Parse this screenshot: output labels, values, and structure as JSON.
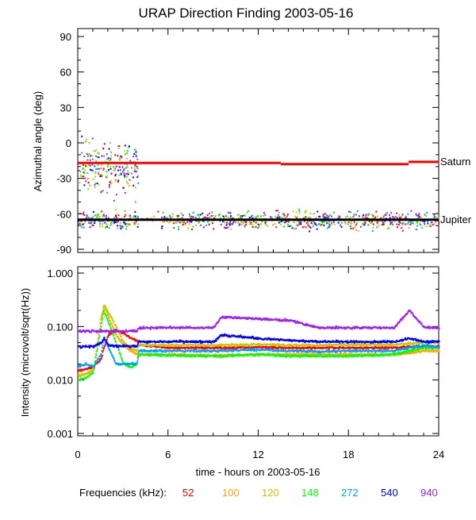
{
  "chart_data": [
    {
      "type": "scatter",
      "title": "URAP Direction Finding  2003-05-16",
      "ylabel": "Azimuthal angle (deg)",
      "xlim": [
        0,
        24
      ],
      "ylim": [
        -90,
        90
      ],
      "x_ticks": [
        "0",
        "6",
        "12",
        "18",
        "24"
      ],
      "y_ticks": [
        "90",
        "60",
        "30",
        "0",
        "-30",
        "-60",
        "-90"
      ],
      "reference_lines": [
        {
          "label": "Saturn",
          "color": "#ff0000",
          "segments": [
            [
              0,
              13.5,
              -17
            ],
            [
              13.5,
              22,
              -18
            ],
            [
              22,
              24,
              -16
            ]
          ]
        },
        {
          "label": "Jupiter",
          "color": "#000000",
          "segments": [
            [
              0,
              24,
              -65
            ]
          ]
        }
      ],
      "scatter_clusters": [
        {
          "x": [
            0,
            24
          ],
          "center": -65,
          "spread": 8,
          "note": "all frequencies"
        },
        {
          "x": [
            0,
            4
          ],
          "center": -20,
          "spread": 20,
          "note": "all frequencies"
        }
      ]
    },
    {
      "type": "line",
      "ylabel": "Intensity (microvolt/sqrt(Hz))",
      "xlabel": "time - hours on 2003-05-16",
      "xlim": [
        0,
        24
      ],
      "ylim": [
        0.001,
        1.0
      ],
      "yscale": "log",
      "x_ticks": [
        "0",
        "6",
        "12",
        "18",
        "24"
      ],
      "y_ticks": [
        "1.000",
        "0.100",
        "0.010",
        "0.001"
      ],
      "x": [
        0,
        0.5,
        1,
        1.5,
        1.7,
        2,
        2.5,
        3,
        3.5,
        3.9,
        4,
        6,
        9,
        9.5,
        12,
        14,
        16,
        18,
        21,
        22,
        23,
        24
      ],
      "series": [
        {
          "name": "52",
          "color": "#ff0000",
          "values": [
            0.015,
            0.016,
            0.018,
            0.025,
            0.04,
            0.07,
            0.085,
            0.075,
            0.06,
            0.055,
            0.045,
            0.04,
            0.04,
            0.04,
            0.041,
            0.04,
            0.04,
            0.04,
            0.04,
            0.042,
            0.042,
            0.042
          ]
        },
        {
          "name": "100",
          "color": "#ffa500",
          "values": [
            0.012,
            0.013,
            0.015,
            0.15,
            0.25,
            0.15,
            0.07,
            0.045,
            0.035,
            0.03,
            0.03,
            0.03,
            0.029,
            0.029,
            0.03,
            0.03,
            0.03,
            0.03,
            0.03,
            0.032,
            0.035,
            0.035
          ]
        },
        {
          "name": "120",
          "color": "#c8c800",
          "values": [
            0.012,
            0.013,
            0.016,
            0.12,
            0.25,
            0.18,
            0.1,
            0.05,
            0.04,
            0.035,
            0.045,
            0.045,
            0.045,
            0.045,
            0.046,
            0.045,
            0.045,
            0.046,
            0.046,
            0.048,
            0.05,
            0.05
          ]
        },
        {
          "name": "148",
          "color": "#00ff00",
          "values": [
            0.01,
            0.011,
            0.014,
            0.1,
            0.2,
            0.12,
            0.05,
            0.02,
            0.017,
            0.02,
            0.03,
            0.029,
            0.028,
            0.028,
            0.03,
            0.028,
            0.028,
            0.028,
            0.03,
            0.035,
            0.04,
            0.04
          ]
        },
        {
          "name": "272",
          "color": "#00a0ff",
          "values": [
            0.018,
            0.02,
            0.018,
            0.03,
            0.06,
            0.04,
            0.02,
            0.02,
            0.02,
            0.02,
            0.035,
            0.035,
            0.035,
            0.035,
            0.037,
            0.035,
            0.034,
            0.035,
            0.035,
            0.04,
            0.045,
            0.04
          ]
        },
        {
          "name": "540",
          "color": "#0000ff",
          "values": [
            0.042,
            0.042,
            0.042,
            0.05,
            0.06,
            0.045,
            0.043,
            0.043,
            0.043,
            0.043,
            0.052,
            0.052,
            0.052,
            0.07,
            0.06,
            0.055,
            0.052,
            0.052,
            0.052,
            0.06,
            0.052,
            0.052
          ]
        },
        {
          "name": "940",
          "color": "#a020f0",
          "values": [
            0.082,
            0.082,
            0.082,
            0.082,
            0.082,
            0.082,
            0.082,
            0.082,
            0.082,
            0.082,
            0.095,
            0.095,
            0.095,
            0.15,
            0.14,
            0.13,
            0.095,
            0.095,
            0.095,
            0.2,
            0.095,
            0.095
          ]
        }
      ]
    }
  ],
  "legend": {
    "label": "Frequencies (kHz):",
    "items": [
      "52",
      "100",
      "120",
      "148",
      "272",
      "540",
      "940"
    ]
  }
}
